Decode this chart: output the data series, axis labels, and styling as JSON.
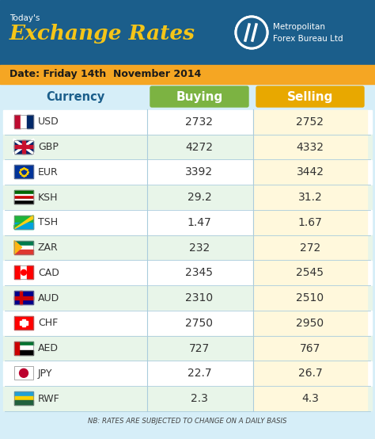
{
  "title_small": "Today's",
  "title_large": "Exchange Rates",
  "company_name": "Metropolitan\nForex Bureau Ltd",
  "date_label": "Date: Friday 14th  November 2014",
  "note": "NB: RATES ARE SUBJECTED TO CHANGE ON A DAILY BASIS",
  "header_currency": "Currency",
  "header_buying": "Buying",
  "header_selling": "Selling",
  "currencies": [
    "USD",
    "GBP",
    "EUR",
    "KSH",
    "TSH",
    "ZAR",
    "CAD",
    "AUD",
    "CHF",
    "AED",
    "JPY",
    "RWF"
  ],
  "buying": [
    "2732",
    "4272",
    "3392",
    "29.2",
    "1.47",
    "232",
    "2345",
    "2310",
    "2750",
    "727",
    "22.7",
    "2.3"
  ],
  "selling": [
    "2752",
    "4332",
    "3442",
    "31.2",
    "1.67",
    "272",
    "2545",
    "2510",
    "2950",
    "767",
    "26.7",
    "4.3"
  ],
  "header_bg": "#1B5E8B",
  "date_bg": "#F5A623",
  "buying_header_bg": "#7CB342",
  "selling_header_bg": "#E8A800",
  "table_bg": "#D6EEF8",
  "row_bg_white": "#FFFFFF",
  "row_bg_light": "#E8F5E9",
  "sell_col_bg": "#FFF8DC",
  "text_white": "#FFFFFF",
  "text_dark": "#333333",
  "text_blue": "#1B5E8B",
  "text_yellow": "#F5C518",
  "figsize": [
    4.74,
    5.54
  ],
  "dpi": 100,
  "flag_colors": {
    "USD": [
      "#BF0A30",
      "#FFFFFF",
      "#002868"
    ],
    "GBP": [
      "#012169",
      "#C8102E",
      "#FFFFFF"
    ],
    "EUR": [
      "#003399",
      "#FFCC00"
    ],
    "KSH": [
      "#006600",
      "#CC0001",
      "#000000"
    ],
    "TSH": [
      "#1EB53A",
      "#FCD116",
      "#00A3DD"
    ],
    "ZAR": [
      "#007A4D",
      "#FFB612",
      "#DE3831"
    ],
    "CAD": [
      "#FF0000",
      "#FFFFFF",
      "#FF0000"
    ],
    "AUD": [
      "#00008B",
      "#CC0000",
      "#FFFFFF"
    ],
    "CHF": [
      "#FF0000",
      "#FFFFFF"
    ],
    "AED": [
      "#00732F",
      "#FFFFFF",
      "#CC0000"
    ],
    "JPY": [
      "#FFFFFF",
      "#BC002D"
    ],
    "RWF": [
      "#20603D",
      "#FAD201",
      "#20A0D6"
    ]
  }
}
